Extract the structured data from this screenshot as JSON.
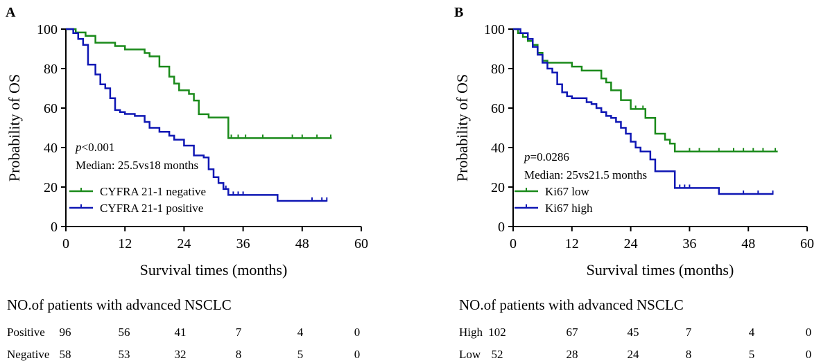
{
  "colors": {
    "negative": "#1a8a1a",
    "positive": "#0f17b4",
    "axis": "#000000"
  },
  "chart_data": [
    {
      "type": "line",
      "panel": "A",
      "xlabel": "Survival times (months)",
      "ylabel": "Probability of OS",
      "xlim": [
        0,
        60
      ],
      "ylim": [
        0,
        100
      ],
      "xticks": [
        0,
        12,
        24,
        36,
        48,
        60
      ],
      "yticks": [
        0,
        20,
        40,
        60,
        80,
        100
      ],
      "annotation": {
        "p_prefix": "p",
        "p_value": "<0.001",
        "median": "Median: 25.5vs18 months"
      },
      "legend_position": "lower-left",
      "series": [
        {
          "name": "CYFRA 21-1 negative",
          "color_key": "negative",
          "steps": [
            [
              0,
              100
            ],
            [
              2,
              98.3
            ],
            [
              4,
              96.6
            ],
            [
              6,
              93.1
            ],
            [
              10,
              91.4
            ],
            [
              12,
              89.7
            ],
            [
              16,
              87.9
            ],
            [
              17,
              86.2
            ],
            [
              19,
              81
            ],
            [
              21,
              75.9
            ],
            [
              22,
              72.4
            ],
            [
              23,
              69
            ],
            [
              25,
              67.2
            ],
            [
              26,
              63.8
            ],
            [
              27,
              56.9
            ],
            [
              29,
              55.2
            ],
            [
              33,
              44.8
            ],
            [
              54,
              44.8
            ]
          ],
          "censors": [
            33.6,
            35,
            36.5,
            40,
            46,
            48,
            51,
            53.8
          ]
        },
        {
          "name": "CYFRA 21-1 positive",
          "color_key": "positive",
          "steps": [
            [
              0,
              100
            ],
            [
              1.5,
              98
            ],
            [
              2.5,
              95
            ],
            [
              3.5,
              92
            ],
            [
              4.5,
              82
            ],
            [
              6,
              77
            ],
            [
              7,
              72
            ],
            [
              8,
              70
            ],
            [
              9,
              65
            ],
            [
              10,
              59
            ],
            [
              11,
              58
            ],
            [
              12,
              57
            ],
            [
              14,
              56
            ],
            [
              16,
              53
            ],
            [
              17,
              50
            ],
            [
              19,
              48
            ],
            [
              21,
              46
            ],
            [
              22,
              44
            ],
            [
              24,
              41
            ],
            [
              26,
              36
            ],
            [
              28,
              35
            ],
            [
              29,
              29
            ],
            [
              30,
              25
            ],
            [
              31,
              22
            ],
            [
              32,
              19
            ],
            [
              33,
              16
            ],
            [
              43,
              13
            ],
            [
              53,
              13
            ]
          ],
          "censors": [
            32.5,
            34,
            35,
            36,
            50,
            52,
            53
          ]
        }
      ],
      "risk_table": {
        "title": "NO.of patients with advanced NSCLC",
        "rows": [
          {
            "label": "Positive",
            "values": [
              "96",
              "56",
              "41",
              "7",
              "4",
              "0"
            ]
          },
          {
            "label": "Negative",
            "values": [
              "58",
              "53",
              "32",
              "8",
              "5",
              "0"
            ]
          }
        ]
      }
    },
    {
      "type": "line",
      "panel": "B",
      "xlabel": "Survival times (months)",
      "ylabel": "Probability of OS",
      "xlim": [
        0,
        60
      ],
      "ylim": [
        0,
        100
      ],
      "xticks": [
        0,
        12,
        24,
        36,
        48,
        60
      ],
      "yticks": [
        0,
        20,
        40,
        60,
        80,
        100
      ],
      "annotation": {
        "p_prefix": "p",
        "p_value": "=0.0286",
        "median": "Median: 25vs21.5 months"
      },
      "legend_position": "lower-left",
      "series": [
        {
          "name": "Ki67 low",
          "color_key": "negative",
          "steps": [
            [
              0,
              100
            ],
            [
              1,
              98
            ],
            [
              2,
              96
            ],
            [
              3,
              94
            ],
            [
              4,
              92
            ],
            [
              5,
              88
            ],
            [
              6,
              84
            ],
            [
              7,
              83
            ],
            [
              12,
              81
            ],
            [
              14,
              79
            ],
            [
              18,
              75
            ],
            [
              19,
              73
            ],
            [
              20,
              69
            ],
            [
              22,
              64
            ],
            [
              24,
              59.5
            ],
            [
              27,
              55
            ],
            [
              29,
              47
            ],
            [
              31,
              44
            ],
            [
              32,
              42
            ],
            [
              33,
              38
            ],
            [
              54,
              38
            ]
          ],
          "censors": [
            25,
            26.5,
            36,
            38,
            42,
            45,
            47,
            49,
            51,
            53.5
          ]
        },
        {
          "name": "Ki67 high",
          "color_key": "positive",
          "steps": [
            [
              0,
              100
            ],
            [
              1.5,
              98
            ],
            [
              3,
              95
            ],
            [
              4,
              91
            ],
            [
              5,
              87
            ],
            [
              6,
              83
            ],
            [
              7,
              80
            ],
            [
              8,
              78
            ],
            [
              9,
              72
            ],
            [
              10,
              68
            ],
            [
              11,
              66
            ],
            [
              12,
              65
            ],
            [
              15,
              63
            ],
            [
              16,
              62
            ],
            [
              17,
              60
            ],
            [
              18,
              58
            ],
            [
              19,
              56
            ],
            [
              20,
              55
            ],
            [
              21,
              53
            ],
            [
              22,
              50
            ],
            [
              23,
              47
            ],
            [
              24,
              43
            ],
            [
              25,
              40
            ],
            [
              26,
              38
            ],
            [
              28,
              34
            ],
            [
              29,
              28
            ],
            [
              33,
              19.5
            ],
            [
              42,
              16.5
            ],
            [
              53,
              16.5
            ]
          ],
          "censors": [
            34,
            35,
            36,
            47,
            50,
            53
          ]
        }
      ],
      "risk_table": {
        "title": "NO.of patients with advanced NSCLC",
        "rows": [
          {
            "label": "High",
            "values": [
              "102",
              "67",
              "45",
              "7",
              "4",
              "0"
            ]
          },
          {
            "label": "Low",
            "values": [
              "52",
              "28",
              "24",
              "8",
              "5",
              "0"
            ]
          }
        ]
      }
    }
  ]
}
